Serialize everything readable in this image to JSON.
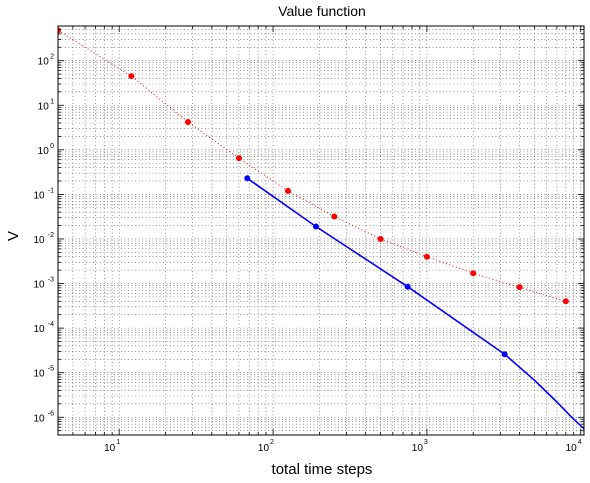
{
  "chart_data": {
    "type": "line",
    "title": "Value function",
    "xlabel": "total time steps",
    "ylabel": "V",
    "xscale": "log",
    "yscale": "log",
    "xlim": [
      4,
      10500
    ],
    "ylim": [
      4e-07,
      600
    ],
    "grid": true,
    "legend": "none",
    "x_ticks": [
      {
        "base": "10",
        "exp": "1",
        "value": 10
      },
      {
        "base": "10",
        "exp": "2",
        "value": 100
      },
      {
        "base": "10",
        "exp": "3",
        "value": 1000
      },
      {
        "base": "10",
        "exp": "4",
        "value": 10000
      }
    ],
    "y_ticks": [
      {
        "base": "10",
        "exp": "2",
        "value": 100
      },
      {
        "base": "10",
        "exp": "1",
        "value": 10
      },
      {
        "base": "10",
        "exp": "0",
        "value": 1
      },
      {
        "base": "10",
        "exp": "-1",
        "value": 0.1
      },
      {
        "base": "10",
        "exp": "-2",
        "value": 0.01
      },
      {
        "base": "10",
        "exp": "-3",
        "value": 0.001
      },
      {
        "base": "10",
        "exp": "-4",
        "value": 0.0001
      },
      {
        "base": "10",
        "exp": "-5",
        "value": 1e-05
      },
      {
        "base": "10",
        "exp": "-6",
        "value": 1e-06
      }
    ],
    "series": [
      {
        "color": "#ff0000",
        "line_style": "dotted",
        "marker": "dot",
        "points": [
          [
            4,
            480
          ],
          [
            12,
            45
          ],
          [
            28,
            4.2
          ],
          [
            60,
            0.65
          ],
          [
            125,
            0.12
          ],
          [
            250,
            0.032
          ],
          [
            500,
            0.01
          ],
          [
            1000,
            0.004
          ],
          [
            2000,
            0.0017
          ],
          [
            4000,
            0.00083
          ],
          [
            8000,
            0.0004
          ]
        ]
      },
      {
        "color": "#0000ff",
        "line_style": "solid",
        "marker": "dot",
        "points": [
          [
            68,
            0.23
          ],
          [
            190,
            0.019
          ],
          [
            750,
            0.00085
          ],
          [
            3200,
            2.6e-05
          ]
        ],
        "line": [
          [
            68,
            0.23
          ],
          [
            190,
            0.019
          ],
          [
            750,
            0.00085
          ],
          [
            3200,
            2.6e-05
          ],
          [
            5000,
            6.8e-06
          ],
          [
            7000,
            2.2e-06
          ],
          [
            8500,
            1.1e-06
          ],
          [
            10500,
            5.5e-07
          ]
        ]
      }
    ]
  }
}
